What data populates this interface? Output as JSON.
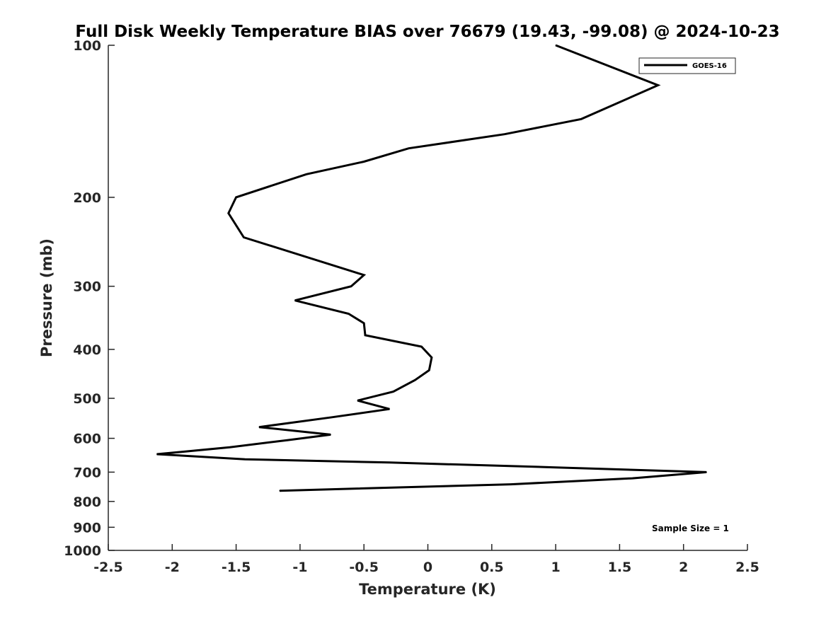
{
  "chart_data": {
    "type": "line",
    "title": "Full Disk Weekly Temperature BIAS over 76679 (19.43, -99.08) @ 2024-10-23",
    "xlabel": "Temperature (K)",
    "ylabel": "Pressure (mb)",
    "xlim": [
      -2.5,
      2.5
    ],
    "ylim": [
      100,
      1000
    ],
    "y_scale": "log",
    "y_reversed": true,
    "grid": false,
    "legend_position": "top-right",
    "x_ticks": [
      "-2.5",
      "-2",
      "-1.5",
      "-1",
      "-0.5",
      "0",
      "0.5",
      "1",
      "1.5",
      "2",
      "2.5"
    ],
    "y_ticks": [
      "100",
      "200",
      "300",
      "400",
      "500",
      "600",
      "700",
      "800",
      "900",
      "1000"
    ],
    "series": [
      {
        "name": "GOES-16",
        "color": "#000000",
        "points": [
          [
            1.0,
            100
          ],
          [
            1.8,
            120
          ],
          [
            1.2,
            140
          ],
          [
            0.6,
            150
          ],
          [
            -0.15,
            160
          ],
          [
            -0.5,
            170
          ],
          [
            -0.95,
            180
          ],
          [
            -1.5,
            200
          ],
          [
            -1.56,
            215
          ],
          [
            -1.44,
            240
          ],
          [
            -0.5,
            285
          ],
          [
            -0.6,
            300
          ],
          [
            -1.04,
            320
          ],
          [
            -0.62,
            340
          ],
          [
            -0.5,
            355
          ],
          [
            -0.49,
            375
          ],
          [
            -0.05,
            395
          ],
          [
            0.03,
            415
          ],
          [
            0.01,
            440
          ],
          [
            -0.1,
            460
          ],
          [
            -0.27,
            485
          ],
          [
            -0.55,
            505
          ],
          [
            -0.3,
            525
          ],
          [
            -0.75,
            545
          ],
          [
            -1.32,
            570
          ],
          [
            -0.76,
            590
          ],
          [
            -1.1,
            605
          ],
          [
            -1.55,
            625
          ],
          [
            -2.12,
            645
          ],
          [
            -1.43,
            660
          ],
          [
            -0.3,
            670
          ],
          [
            1.0,
            685
          ],
          [
            2.18,
            700
          ],
          [
            1.6,
            720
          ],
          [
            0.65,
            740
          ],
          [
            -1.16,
            762
          ]
        ]
      }
    ],
    "legend": {
      "entries": [
        "GOES-16"
      ]
    },
    "annotation": "Sample Size = 1"
  }
}
